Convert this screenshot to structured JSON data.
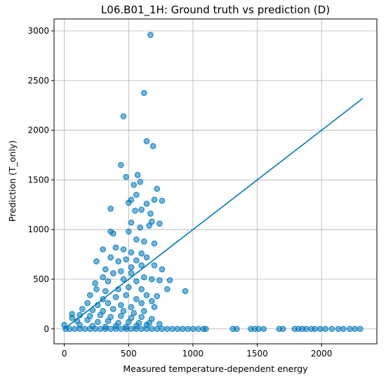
{
  "chart_data": {
    "type": "scatter",
    "title": "L06.B01_1H: Ground truth vs prediction (D)",
    "xlabel": "Measured temperature-dependent energy",
    "ylabel": "Prediction (T_only)",
    "xlim": [
      -80,
      2430
    ],
    "ylim": [
      -150,
      3120
    ],
    "xticks": [
      0,
      500,
      1000,
      1500,
      2000
    ],
    "yticks": [
      0,
      500,
      1000,
      1500,
      2000,
      2500,
      3000
    ],
    "grid": true,
    "colors": {
      "points": "#0077bb",
      "line": "#0077bb"
    },
    "reference_line": {
      "x": [
        0,
        2320
      ],
      "y": [
        0,
        2320
      ]
    },
    "points": [
      [
        670,
        2960
      ],
      [
        620,
        2375
      ],
      [
        460,
        2140
      ],
      [
        640,
        1890
      ],
      [
        690,
        1840
      ],
      [
        440,
        1650
      ],
      [
        570,
        1550
      ],
      [
        480,
        1530
      ],
      [
        540,
        1450
      ],
      [
        590,
        1480
      ],
      [
        720,
        1410
      ],
      [
        560,
        1350
      ],
      [
        520,
        1300
      ],
      [
        500,
        1270
      ],
      [
        670,
        1160
      ],
      [
        600,
        1200
      ],
      [
        360,
        1210
      ],
      [
        640,
        1260
      ],
      [
        700,
        1300
      ],
      [
        760,
        1290
      ],
      [
        550,
        1190
      ],
      [
        680,
        1080
      ],
      [
        740,
        1060
      ],
      [
        500,
        980
      ],
      [
        520,
        1070
      ],
      [
        590,
        1020
      ],
      [
        660,
        1040
      ],
      [
        360,
        980
      ],
      [
        380,
        960
      ],
      [
        560,
        900
      ],
      [
        620,
        880
      ],
      [
        700,
        860
      ],
      [
        300,
        800
      ],
      [
        400,
        820
      ],
      [
        460,
        800
      ],
      [
        520,
        770
      ],
      [
        600,
        760
      ],
      [
        640,
        720
      ],
      [
        480,
        700
      ],
      [
        560,
        690
      ],
      [
        250,
        680
      ],
      [
        360,
        720
      ],
      [
        420,
        680
      ],
      [
        600,
        640
      ],
      [
        520,
        620
      ],
      [
        700,
        640
      ],
      [
        760,
        600
      ],
      [
        320,
        600
      ],
      [
        380,
        560
      ],
      [
        440,
        580
      ],
      [
        520,
        560
      ],
      [
        620,
        520
      ],
      [
        300,
        520
      ],
      [
        240,
        460
      ],
      [
        340,
        480
      ],
      [
        460,
        500
      ],
      [
        560,
        480
      ],
      [
        680,
        500
      ],
      [
        740,
        490
      ],
      [
        820,
        490
      ],
      [
        250,
        400
      ],
      [
        320,
        380
      ],
      [
        420,
        400
      ],
      [
        500,
        420
      ],
      [
        600,
        400
      ],
      [
        800,
        400
      ],
      [
        940,
        380
      ],
      [
        200,
        340
      ],
      [
        300,
        300
      ],
      [
        400,
        320
      ],
      [
        480,
        340
      ],
      [
        560,
        300
      ],
      [
        640,
        340
      ],
      [
        720,
        330
      ],
      [
        180,
        260
      ],
      [
        260,
        240
      ],
      [
        340,
        260
      ],
      [
        440,
        240
      ],
      [
        520,
        220
      ],
      [
        600,
        260
      ],
      [
        680,
        280
      ],
      [
        140,
        200
      ],
      [
        220,
        190
      ],
      [
        300,
        180
      ],
      [
        380,
        200
      ],
      [
        460,
        180
      ],
      [
        540,
        160
      ],
      [
        620,
        180
      ],
      [
        700,
        220
      ],
      [
        120,
        140
      ],
      [
        200,
        130
      ],
      [
        280,
        140
      ],
      [
        360,
        120
      ],
      [
        440,
        130
      ],
      [
        520,
        110
      ],
      [
        600,
        120
      ],
      [
        680,
        100
      ],
      [
        60,
        110
      ],
      [
        100,
        80
      ],
      [
        180,
        90
      ],
      [
        260,
        70
      ],
      [
        340,
        80
      ],
      [
        420,
        60
      ],
      [
        500,
        70
      ],
      [
        580,
        60
      ],
      [
        660,
        60
      ],
      [
        740,
        50
      ],
      [
        60,
        150
      ],
      [
        120,
        40
      ],
      [
        220,
        30
      ],
      [
        320,
        20
      ],
      [
        400,
        30
      ],
      [
        480,
        20
      ],
      [
        560,
        30
      ],
      [
        640,
        40
      ],
      [
        0,
        40
      ],
      [
        10,
        0
      ],
      [
        40,
        0
      ],
      [
        80,
        0
      ],
      [
        120,
        0
      ],
      [
        160,
        0
      ],
      [
        200,
        0
      ],
      [
        240,
        0
      ],
      [
        280,
        0
      ],
      [
        320,
        0
      ],
      [
        360,
        0
      ],
      [
        400,
        0
      ],
      [
        440,
        0
      ],
      [
        480,
        0
      ],
      [
        520,
        0
      ],
      [
        560,
        0
      ],
      [
        600,
        0
      ],
      [
        640,
        0
      ],
      [
        680,
        0
      ],
      [
        720,
        0
      ],
      [
        760,
        0
      ],
      [
        800,
        0
      ],
      [
        840,
        0
      ],
      [
        880,
        0
      ],
      [
        920,
        0
      ],
      [
        960,
        0
      ],
      [
        1000,
        0
      ],
      [
        1040,
        0
      ],
      [
        1080,
        0
      ],
      [
        1100,
        0
      ],
      [
        1310,
        0
      ],
      [
        1340,
        0
      ],
      [
        1450,
        0
      ],
      [
        1480,
        0
      ],
      [
        1510,
        0
      ],
      [
        1550,
        0
      ],
      [
        1670,
        0
      ],
      [
        1700,
        0
      ],
      [
        1790,
        0
      ],
      [
        1820,
        0
      ],
      [
        1850,
        0
      ],
      [
        1880,
        0
      ],
      [
        1920,
        0
      ],
      [
        1950,
        0
      ],
      [
        1990,
        0
      ],
      [
        2030,
        0
      ],
      [
        2080,
        0
      ],
      [
        2130,
        0
      ],
      [
        2170,
        0
      ],
      [
        2220,
        0
      ],
      [
        2260,
        0
      ],
      [
        2300,
        0
      ]
    ]
  }
}
